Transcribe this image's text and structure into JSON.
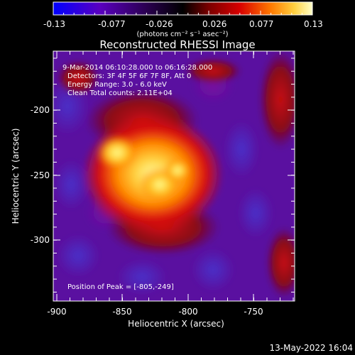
{
  "colorbar": {
    "tick_labels": [
      "-0.13",
      "-0.077",
      "-0.026",
      "0.026",
      "0.077",
      "0.13"
    ],
    "units_label": "(photons cm⁻² s⁻¹ asec⁻²)",
    "colors": [
      "#0000ff",
      "#5a00c0",
      "#2a0050",
      "#000000",
      "#7a0000",
      "#d80000",
      "#ff7a00",
      "#ffd040",
      "#ffffc8"
    ]
  },
  "plot": {
    "title": "Reconstructed RHESSI Image",
    "xlabel": "Heliocentric X (arcsec)",
    "ylabel": "Heliocentric Y (arcsec)",
    "x_ticks": [
      "-900",
      "-850",
      "-800",
      "-750"
    ],
    "y_ticks": [
      "-200",
      "-250",
      "-300"
    ],
    "info_lines": [
      "9-Mar-2014 06:10:28.000 to 06:16:28.000",
      "Detectors: 3F 4F 5F 6F 7F 8F, Att 0",
      "Energy Range: 3.0 - 6.0 keV",
      "Clean    Total counts: 2.11E+04"
    ],
    "peak_text": "Position of Peak = [-805,-249]",
    "peak_position": [
      -805,
      -249
    ]
  },
  "footer": {
    "timestamp": "13-May-2022 16:04"
  }
}
